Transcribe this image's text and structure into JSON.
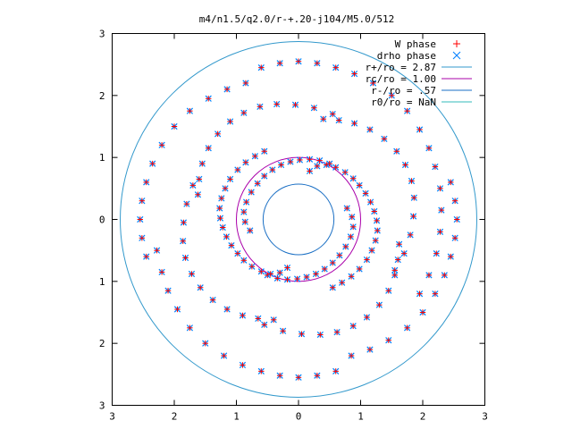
{
  "chart_data": {
    "type": "scatter",
    "title": "m4/n1.5/q2.0/r-+.20-j104/M5.0/512",
    "xlim": [
      -3,
      3
    ],
    "ylim": [
      -3,
      3
    ],
    "x_ticks": [
      {
        "v": -3,
        "label": "3"
      },
      {
        "v": -2,
        "label": "2"
      },
      {
        "v": -1,
        "label": "1"
      },
      {
        "v": 0,
        "label": "0"
      },
      {
        "v": 1,
        "label": "1"
      },
      {
        "v": 2,
        "label": "2"
      },
      {
        "v": 3,
        "label": "3"
      }
    ],
    "y_ticks": [
      {
        "v": 3,
        "label": "3"
      },
      {
        "v": 2,
        "label": "2"
      },
      {
        "v": 1,
        "label": "1"
      },
      {
        "v": 0,
        "label": "0"
      },
      {
        "v": -1,
        "label": "1"
      },
      {
        "v": -2,
        "label": "2"
      },
      {
        "v": -3,
        "label": "3"
      }
    ],
    "grid": false,
    "legend_position": "top-right",
    "series": [
      {
        "name": "W phase",
        "marker": "plus",
        "color": "#ff0000"
      },
      {
        "name": "drho phase",
        "marker": "x",
        "color": "#0080ff"
      }
    ],
    "circles": [
      {
        "label": "r+/ro = 2.87",
        "r": 2.87,
        "color": "#3399cc"
      },
      {
        "label": "rc/ro = 1.00",
        "r": 1.0,
        "color": "#aa00aa"
      },
      {
        "label": "r-/ro = .57",
        "r": 0.57,
        "color": "#1a6fc4"
      },
      {
        "label": "r0/ro = NaN",
        "r": null,
        "color": "#33bbbb"
      }
    ],
    "spiral_points": [
      [
        0.18,
        0.78
      ],
      [
        0.3,
        0.86
      ],
      [
        0.45,
        0.88
      ],
      [
        0.6,
        0.84
      ],
      [
        0.75,
        0.76
      ],
      [
        0.88,
        0.66
      ],
      [
        0.98,
        0.55
      ],
      [
        1.08,
        0.42
      ],
      [
        1.16,
        0.28
      ],
      [
        1.22,
        0.13
      ],
      [
        1.26,
        -0.02
      ],
      [
        1.27,
        -0.18
      ],
      [
        1.24,
        -0.34
      ],
      [
        1.18,
        -0.5
      ],
      [
        1.1,
        -0.65
      ],
      [
        0.98,
        -0.8
      ],
      [
        0.85,
        -0.92
      ],
      [
        0.7,
        -1.02
      ],
      [
        0.55,
        -1.1
      ],
      [
        0.78,
        0.18
      ],
      [
        0.86,
        0.04
      ],
      [
        0.88,
        -0.12
      ],
      [
        0.84,
        -0.28
      ],
      [
        0.76,
        -0.44
      ],
      [
        0.66,
        -0.58
      ],
      [
        0.55,
        -0.7
      ],
      [
        0.42,
        -0.8
      ],
      [
        0.28,
        -0.88
      ],
      [
        0.13,
        -0.93
      ],
      [
        -0.02,
        -0.96
      ],
      [
        -0.18,
        -0.97
      ],
      [
        -0.34,
        -0.95
      ],
      [
        -0.5,
        -0.9
      ],
      [
        -0.18,
        -0.78
      ],
      [
        -0.3,
        -0.86
      ],
      [
        -0.45,
        -0.88
      ],
      [
        -0.6,
        -0.84
      ],
      [
        -0.75,
        -0.76
      ],
      [
        -0.88,
        -0.66
      ],
      [
        -0.98,
        -0.55
      ],
      [
        -1.08,
        -0.42
      ],
      [
        -1.16,
        -0.28
      ],
      [
        -1.22,
        -0.13
      ],
      [
        -1.26,
        0.02
      ],
      [
        -1.27,
        0.18
      ],
      [
        -1.24,
        0.34
      ],
      [
        -1.18,
        0.5
      ],
      [
        -1.1,
        0.65
      ],
      [
        -0.98,
        0.8
      ],
      [
        -0.85,
        0.92
      ],
      [
        -0.7,
        1.02
      ],
      [
        -0.55,
        1.1
      ],
      [
        -0.78,
        -0.18
      ],
      [
        -0.86,
        -0.04
      ],
      [
        -0.88,
        0.12
      ],
      [
        -0.84,
        0.28
      ],
      [
        -0.76,
        0.44
      ],
      [
        -0.66,
        0.58
      ],
      [
        -0.55,
        0.7
      ],
      [
        -0.42,
        0.8
      ],
      [
        -0.28,
        0.88
      ],
      [
        -0.13,
        0.93
      ],
      [
        0.02,
        0.96
      ],
      [
        0.18,
        0.97
      ],
      [
        0.34,
        0.95
      ],
      [
        0.5,
        0.9
      ],
      [
        0.4,
        1.62
      ],
      [
        0.65,
        1.6
      ],
      [
        0.9,
        1.55
      ],
      [
        1.15,
        1.45
      ],
      [
        1.38,
        1.3
      ],
      [
        1.58,
        1.1
      ],
      [
        1.72,
        0.88
      ],
      [
        1.82,
        0.62
      ],
      [
        1.86,
        0.35
      ],
      [
        1.85,
        0.05
      ],
      [
        1.8,
        -0.25
      ],
      [
        1.7,
        -0.55
      ],
      [
        1.55,
        -0.82
      ],
      [
        1.62,
        -0.4
      ],
      [
        1.6,
        -0.65
      ],
      [
        1.55,
        -0.9
      ],
      [
        1.45,
        -1.15
      ],
      [
        1.3,
        -1.38
      ],
      [
        1.1,
        -1.58
      ],
      [
        0.88,
        -1.72
      ],
      [
        0.62,
        -1.82
      ],
      [
        0.35,
        -1.86
      ],
      [
        0.05,
        -1.85
      ],
      [
        -0.25,
        -1.8
      ],
      [
        -0.55,
        -1.7
      ],
      [
        -0.4,
        -1.62
      ],
      [
        -0.65,
        -1.6
      ],
      [
        -0.9,
        -1.55
      ],
      [
        -1.15,
        -1.45
      ],
      [
        -1.38,
        -1.3
      ],
      [
        -1.58,
        -1.1
      ],
      [
        -1.72,
        -0.88
      ],
      [
        -1.82,
        -0.62
      ],
      [
        -1.86,
        -0.35
      ],
      [
        -1.85,
        -0.05
      ],
      [
        -1.8,
        0.25
      ],
      [
        -1.7,
        0.55
      ],
      [
        -1.62,
        0.4
      ],
      [
        -1.6,
        0.65
      ],
      [
        -1.55,
        0.9
      ],
      [
        -1.45,
        1.15
      ],
      [
        -1.3,
        1.38
      ],
      [
        -1.1,
        1.58
      ],
      [
        -0.88,
        1.72
      ],
      [
        -0.62,
        1.82
      ],
      [
        -0.35,
        1.86
      ],
      [
        -0.05,
        1.85
      ],
      [
        0.25,
        1.8
      ],
      [
        0.55,
        1.7
      ],
      [
        -0.6,
        2.45
      ],
      [
        -0.3,
        2.52
      ],
      [
        0.0,
        2.55
      ],
      [
        0.3,
        2.52
      ],
      [
        0.6,
        2.45
      ],
      [
        0.9,
        2.35
      ],
      [
        1.2,
        2.2
      ],
      [
        1.5,
        2.0
      ],
      [
        1.75,
        1.75
      ],
      [
        1.95,
        1.45
      ],
      [
        2.1,
        1.15
      ],
      [
        2.2,
        0.85
      ],
      [
        2.28,
        0.5
      ],
      [
        2.3,
        0.15
      ],
      [
        2.28,
        -0.2
      ],
      [
        2.22,
        -0.55
      ],
      [
        2.1,
        -0.9
      ],
      [
        1.95,
        -1.2
      ],
      [
        -2.45,
        -0.6
      ],
      [
        -2.52,
        -0.3
      ],
      [
        -2.55,
        0.0
      ],
      [
        -2.52,
        0.3
      ],
      [
        -2.45,
        0.6
      ],
      [
        -2.35,
        0.9
      ],
      [
        -2.2,
        1.2
      ],
      [
        -2.0,
        1.5
      ],
      [
        -1.75,
        1.75
      ],
      [
        -1.45,
        1.95
      ],
      [
        -1.15,
        2.1
      ],
      [
        -0.85,
        2.2
      ],
      [
        0.6,
        -2.45
      ],
      [
        0.3,
        -2.52
      ],
      [
        0.0,
        -2.55
      ],
      [
        -0.3,
        -2.52
      ],
      [
        -0.6,
        -2.45
      ],
      [
        -0.9,
        -2.35
      ],
      [
        -1.2,
        -2.2
      ],
      [
        -1.5,
        -2.0
      ],
      [
        -1.75,
        -1.75
      ],
      [
        -1.95,
        -1.45
      ],
      [
        -2.1,
        -1.15
      ],
      [
        -2.2,
        -0.85
      ],
      [
        -2.28,
        -0.5
      ],
      [
        2.45,
        0.6
      ],
      [
        2.52,
        0.3
      ],
      [
        2.55,
        0.0
      ],
      [
        2.52,
        -0.3
      ],
      [
        2.45,
        -0.6
      ],
      [
        2.35,
        -0.9
      ],
      [
        2.2,
        -1.2
      ],
      [
        2.0,
        -1.5
      ],
      [
        1.75,
        -1.75
      ],
      [
        1.45,
        -1.95
      ],
      [
        1.15,
        -2.1
      ],
      [
        0.85,
        -2.2
      ]
    ]
  }
}
